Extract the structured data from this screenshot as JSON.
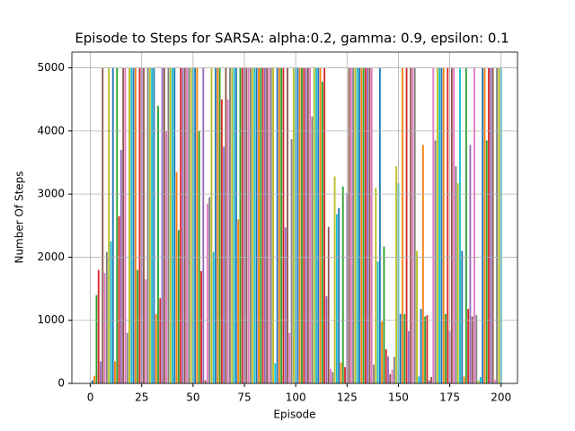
{
  "chart_data": {
    "type": "bar",
    "title": "Episode to Steps for SARSA: alpha:0.2, gamma: 0.9, epsilon: 0.1",
    "xlabel": "Episode",
    "ylabel": "Number Of Steps",
    "x": [
      1,
      2,
      3,
      4,
      5,
      6,
      7,
      8,
      9,
      10,
      11,
      12,
      13,
      14,
      15,
      16,
      17,
      18,
      19,
      20,
      21,
      22,
      23,
      24,
      25,
      26,
      27,
      28,
      29,
      30,
      31,
      32,
      33,
      34,
      35,
      36,
      37,
      38,
      39,
      40,
      41,
      42,
      43,
      44,
      45,
      46,
      47,
      48,
      49,
      50,
      51,
      52,
      53,
      54,
      55,
      56,
      57,
      58,
      59,
      60,
      61,
      62,
      63,
      64,
      65,
      66,
      67,
      68,
      69,
      70,
      71,
      72,
      73,
      74,
      75,
      76,
      77,
      78,
      79,
      80,
      81,
      82,
      83,
      84,
      85,
      86,
      87,
      88,
      89,
      90,
      91,
      92,
      93,
      94,
      95,
      96,
      97,
      98,
      99,
      100,
      101,
      102,
      103,
      104,
      105,
      106,
      107,
      108,
      109,
      110,
      111,
      112,
      113,
      114,
      115,
      116,
      117,
      118,
      119,
      120,
      121,
      122,
      123,
      124,
      125,
      126,
      127,
      128,
      129,
      130,
      131,
      132,
      133,
      134,
      135,
      136,
      137,
      138,
      139,
      140,
      141,
      142,
      143,
      144,
      145,
      146,
      147,
      148,
      149,
      150,
      151,
      152,
      153,
      154,
      155,
      156,
      157,
      158,
      159,
      160,
      161,
      162,
      163,
      164,
      165,
      166,
      167,
      168,
      169,
      170,
      171,
      172,
      173,
      174,
      175,
      176,
      177,
      178,
      179,
      180,
      181,
      182,
      183,
      184,
      185,
      186,
      187,
      188,
      189,
      190,
      191,
      192,
      193,
      194,
      195,
      196,
      197,
      198,
      199,
      200
    ],
    "values": [
      50,
      120,
      1400,
      1800,
      350,
      5000,
      1750,
      2080,
      5000,
      2250,
      5000,
      350,
      5000,
      2650,
      3700,
      5000,
      5000,
      800,
      5000,
      5000,
      5000,
      5000,
      1800,
      5000,
      5000,
      5000,
      1650,
      5000,
      5000,
      5000,
      5000,
      1100,
      4400,
      1350,
      5000,
      5000,
      4000,
      5000,
      5000,
      5000,
      5000,
      3350,
      2430,
      5000,
      5000,
      5000,
      5000,
      5000,
      5000,
      5000,
      5000,
      5000,
      4000,
      1780,
      5000,
      50,
      2850,
      2950,
      5000,
      2080,
      5000,
      5000,
      5000,
      4500,
      3750,
      5000,
      4500,
      5000,
      5000,
      5000,
      5000,
      2600,
      5000,
      5000,
      5000,
      5000,
      5000,
      5000,
      5000,
      5000,
      5000,
      5000,
      5000,
      5000,
      5000,
      5000,
      5000,
      5000,
      5000,
      320,
      5000,
      5000,
      5000,
      5000,
      2470,
      5000,
      800,
      3870,
      5000,
      5000,
      5000,
      5000,
      5000,
      5000,
      5000,
      5000,
      5000,
      4230,
      5000,
      5000,
      5000,
      5000,
      4780,
      5000,
      1380,
      2480,
      230,
      180,
      3280,
      2680,
      2780,
      330,
      3120,
      260,
      3020,
      5000,
      5000,
      5000,
      5000,
      5000,
      5000,
      5000,
      5000,
      5000,
      5000,
      5000,
      5000,
      300,
      3100,
      1930,
      5000,
      980,
      2170,
      540,
      430,
      150,
      220,
      420,
      3440,
      3170,
      1100,
      5000,
      1100,
      5000,
      830,
      5000,
      5000,
      5000,
      2100,
      110,
      1180,
      3780,
      1060,
      1080,
      50,
      100,
      5000,
      3850,
      5000,
      5000,
      5000,
      5000,
      1100,
      5000,
      830,
      5000,
      5000,
      3440,
      3170,
      5000,
      2100,
      110,
      5000,
      1180,
      3780,
      1060,
      5000,
      1080,
      50,
      100,
      5000,
      5000,
      3850,
      5000,
      5000,
      5000,
      60,
      5000,
      5000,
      5000
    ],
    "colors": [
      "#1f77b4",
      "#ff7f0e",
      "#2ca02c",
      "#d62728",
      "#9467bd",
      "#8c564b",
      "#e377c2",
      "#7f7f7f",
      "#bcbd22",
      "#17becf"
    ],
    "xlim": [
      -9,
      208
    ],
    "xticks": [
      0,
      25,
      50,
      75,
      100,
      125,
      150,
      175,
      200
    ],
    "ylim": [
      0,
      5250
    ],
    "yticks": [
      0,
      1000,
      2000,
      3000,
      4000,
      5000
    ],
    "grid": true
  }
}
